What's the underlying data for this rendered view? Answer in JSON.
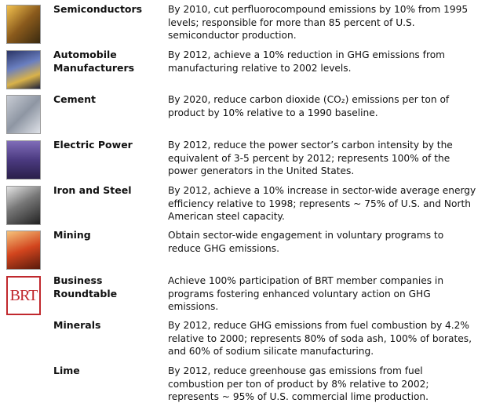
{
  "rows": [
    {
      "name": [
        "Semiconductors"
      ],
      "text": [
        "By 2010, cut perfluorocompound emissions by 10% from 1995",
        "levels;  responsible for more than 85 percent of U.S.",
        "semiconductor production."
      ]
    },
    {
      "name": [
        "Automobile",
        "Manufacturers"
      ],
      "text": [
        "By 2012, achieve a 10% reduction in GHG emissions from",
        "manufacturing relative to 2002 levels."
      ]
    },
    {
      "name": [
        "Cement"
      ],
      "text": [
        "By 2020, reduce carbon dioxide (CO₂) emissions per ton of",
        "product by 10% relative to a 1990 baseline."
      ]
    },
    {
      "name": [
        "Electric Power"
      ],
      "text": [
        "By 2012, reduce the power sector’s carbon intensity by the",
        "equivalent of 3-5 percent by 2012; represents 100% of the",
        "power generators in the United States."
      ]
    },
    {
      "name": [
        "Iron and Steel"
      ],
      "text": [
        "By 2012, achieve a 10% increase in sector-wide average energy",
        "efficiency relative to 1998; represents ~ 75% of U.S. and North",
        "American steel capacity."
      ]
    },
    {
      "name": [
        "Mining"
      ],
      "text": [
        "Obtain sector-wide engagement in voluntary programs to",
        "reduce GHG emissions."
      ]
    },
    {
      "logo": "BRT",
      "name": [
        "Business",
        "Roundtable"
      ],
      "text": [
        "Achieve 100% participation of BRT member companies in",
        "programs fostering enhanced voluntary action on GHG",
        "emissions."
      ]
    },
    {
      "name": [
        "Minerals"
      ],
      "text": [
        "By 2012, reduce GHG emissions from fuel combustion by 4.2%",
        "relative to 2000;  represents 80% of soda ash, 100% of borates,",
        "and 60% of sodium silicate manufacturing."
      ]
    },
    {
      "name": [
        "Lime"
      ],
      "text": [
        "By 2012, reduce greenhouse gas emissions from fuel",
        "combustion per ton of product by 8% relative to 2002;",
        "represents ~ 95% of U.S. commercial lime production."
      ]
    }
  ]
}
